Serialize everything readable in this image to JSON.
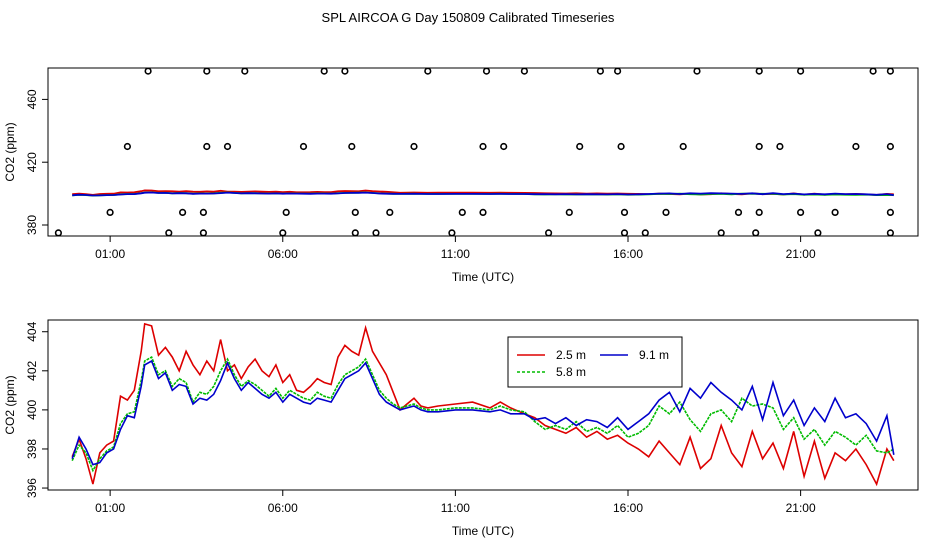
{
  "title": "SPL AIRCOA G  Day 150809  Calibrated Timeseries",
  "chart_data": [
    {
      "type": "line+scatter",
      "xlabel": "Time (UTC)",
      "ylabel": "CO2 (ppm)",
      "xlim_hours": [
        -0.8,
        24.4
      ],
      "ylim": [
        373,
        480
      ],
      "xticks": [
        {
          "h": 1,
          "label": "01:00"
        },
        {
          "h": 6,
          "label": "06:00"
        },
        {
          "h": 11,
          "label": "11:00"
        },
        {
          "h": 16,
          "label": "16:00"
        },
        {
          "h": 21,
          "label": "21:00"
        }
      ],
      "yticks": [
        380,
        420,
        460
      ],
      "line_colors": [
        "#dd0000",
        "#00bb00",
        "#0000cc"
      ],
      "series_y": [
        400.5,
        399.8,
        399.8
      ],
      "scatter_levels": [
        375,
        388,
        430,
        478
      ],
      "scatter": {
        "375": [
          -0.5,
          2.7,
          3.7,
          6.0,
          8.1,
          8.7,
          10.9,
          13.7,
          15.9,
          16.5,
          18.7,
          19.7,
          21.5,
          23.6
        ],
        "388": [
          1.0,
          3.1,
          3.7,
          6.1,
          8.1,
          9.1,
          11.2,
          11.8,
          14.3,
          15.9,
          17.1,
          19.2,
          19.8,
          21.0,
          22.0,
          23.6
        ],
        "430": [
          1.5,
          3.8,
          4.4,
          6.6,
          8.0,
          9.8,
          11.8,
          12.4,
          14.6,
          15.8,
          17.6,
          19.8,
          20.4,
          22.6,
          23.6
        ],
        "478": [
          2.1,
          3.8,
          4.9,
          7.2,
          7.8,
          10.2,
          11.9,
          13.0,
          15.2,
          15.7,
          18.0,
          19.8,
          21.0,
          23.1,
          23.6
        ]
      }
    },
    {
      "type": "line",
      "xlabel": "Time (UTC)",
      "ylabel": "CO2 (ppm)",
      "xlim_hours": [
        -0.8,
        24.4
      ],
      "ylim": [
        395.9,
        404.6
      ],
      "xticks": [
        {
          "h": 1,
          "label": "01:00"
        },
        {
          "h": 6,
          "label": "06:00"
        },
        {
          "h": 11,
          "label": "11:00"
        },
        {
          "h": 16,
          "label": "16:00"
        },
        {
          "h": 21,
          "label": "21:00"
        }
      ],
      "yticks": [
        396,
        398,
        400,
        402,
        404
      ],
      "legend": {
        "position": "top-center",
        "entries": [
          {
            "label": "2.5 m",
            "color": "#dd0000"
          },
          {
            "label": "9.1 m",
            "color": "#0000cc"
          },
          {
            "label": "5.8 m",
            "color": "#00bb00"
          }
        ]
      },
      "series": [
        {
          "name": "2.5 m",
          "color": "#dd0000",
          "x": [
            -0.1,
            0.1,
            0.3,
            0.5,
            0.7,
            0.9,
            1.1,
            1.3,
            1.5,
            1.7,
            1.9,
            2.0,
            2.2,
            2.4,
            2.6,
            2.8,
            3.0,
            3.2,
            3.4,
            3.6,
            3.8,
            4.0,
            4.2,
            4.4,
            4.6,
            4.8,
            5.0,
            5.2,
            5.4,
            5.6,
            5.8,
            6.0,
            6.2,
            6.4,
            6.6,
            6.8,
            7.0,
            7.2,
            7.4,
            7.6,
            7.8,
            8.0,
            8.2,
            8.4,
            8.6,
            8.8,
            9.0,
            9.2,
            9.4,
            9.6,
            9.8,
            10.0,
            10.2,
            10.5,
            11.0,
            11.5,
            12.0,
            12.3,
            12.6,
            13.0,
            13.3,
            13.6,
            13.9,
            14.2,
            14.5,
            14.8,
            15.1,
            15.4,
            15.7,
            16.0,
            16.3,
            16.6,
            16.9,
            17.2,
            17.5,
            17.8,
            18.1,
            18.4,
            18.7,
            19.0,
            19.3,
            19.6,
            19.9,
            20.2,
            20.5,
            20.8,
            21.1,
            21.4,
            21.7,
            22.0,
            22.3,
            22.6,
            22.9,
            23.2,
            23.5,
            23.7
          ],
          "y": [
            397.6,
            398.5,
            397.5,
            396.2,
            397.8,
            398.2,
            398.4,
            400.7,
            400.5,
            401.0,
            403.0,
            404.4,
            404.3,
            402.8,
            403.2,
            402.7,
            402.0,
            403.0,
            402.3,
            401.8,
            402.5,
            402.0,
            403.6,
            402.0,
            402.3,
            401.6,
            402.2,
            402.6,
            402.0,
            401.7,
            402.3,
            401.4,
            401.8,
            401.0,
            400.9,
            401.2,
            401.6,
            401.4,
            401.3,
            402.7,
            403.3,
            403.0,
            402.8,
            404.2,
            403.0,
            402.4,
            401.8,
            400.9,
            400.0,
            400.3,
            400.6,
            400.2,
            400.1,
            400.2,
            400.3,
            400.4,
            400.1,
            400.4,
            400.1,
            399.8,
            399.6,
            399.2,
            399.0,
            398.8,
            399.1,
            398.6,
            398.9,
            398.5,
            398.7,
            398.3,
            398.0,
            397.6,
            398.4,
            397.8,
            397.2,
            398.6,
            397.0,
            397.5,
            399.2,
            397.8,
            397.1,
            398.9,
            397.5,
            398.3,
            397.0,
            398.9,
            396.6,
            398.4,
            396.5,
            397.8,
            397.4,
            398.0,
            397.2,
            396.2,
            398.0,
            397.4
          ]
        },
        {
          "name": "5.8 m",
          "color": "#00bb00",
          "x": [
            -0.1,
            0.1,
            0.3,
            0.5,
            0.7,
            0.9,
            1.1,
            1.3,
            1.5,
            1.7,
            1.9,
            2.0,
            2.2,
            2.4,
            2.6,
            2.8,
            3.0,
            3.2,
            3.4,
            3.6,
            3.8,
            4.0,
            4.2,
            4.4,
            4.6,
            4.8,
            5.0,
            5.2,
            5.4,
            5.6,
            5.8,
            6.0,
            6.2,
            6.4,
            6.6,
            6.8,
            7.0,
            7.2,
            7.4,
            7.6,
            7.8,
            8.0,
            8.2,
            8.4,
            8.6,
            8.8,
            9.0,
            9.2,
            9.4,
            9.6,
            9.8,
            10.0,
            10.2,
            10.5,
            11.0,
            11.5,
            12.0,
            12.3,
            12.6,
            13.0,
            13.3,
            13.6,
            13.9,
            14.2,
            14.5,
            14.8,
            15.1,
            15.4,
            15.7,
            16.0,
            16.3,
            16.6,
            16.9,
            17.2,
            17.5,
            17.8,
            18.1,
            18.4,
            18.7,
            19.0,
            19.3,
            19.6,
            19.9,
            20.2,
            20.5,
            20.8,
            21.1,
            21.4,
            21.7,
            22.0,
            22.3,
            22.6,
            22.9,
            23.2,
            23.5,
            23.7
          ],
          "y": [
            397.4,
            398.2,
            397.8,
            396.9,
            397.5,
            397.9,
            398.1,
            399.3,
            399.8,
            399.9,
            401.5,
            402.5,
            402.7,
            401.8,
            402.0,
            401.2,
            401.6,
            401.4,
            400.4,
            400.9,
            400.8,
            401.2,
            402.0,
            402.6,
            401.8,
            401.2,
            401.5,
            401.3,
            401.0,
            400.7,
            401.1,
            400.6,
            401.0,
            400.8,
            400.6,
            400.5,
            400.9,
            400.7,
            400.6,
            401.3,
            401.8,
            402.0,
            402.2,
            402.6,
            401.8,
            401.0,
            400.6,
            400.3,
            400.1,
            400.2,
            400.3,
            400.1,
            400.0,
            400.0,
            400.1,
            400.1,
            400.0,
            400.2,
            400.0,
            399.9,
            399.4,
            399.0,
            399.2,
            399.0,
            399.4,
            398.9,
            399.1,
            398.8,
            399.2,
            398.6,
            398.8,
            399.2,
            400.2,
            399.8,
            400.4,
            399.5,
            398.9,
            399.8,
            400.0,
            399.4,
            400.6,
            400.2,
            400.3,
            400.1,
            399.0,
            399.6,
            398.5,
            399.0,
            398.2,
            398.9,
            398.6,
            398.2,
            398.7,
            397.9,
            397.8,
            398.0
          ]
        },
        {
          "name": "9.1 m",
          "color": "#0000cc",
          "x": [
            -0.1,
            0.1,
            0.3,
            0.5,
            0.7,
            0.9,
            1.1,
            1.3,
            1.5,
            1.7,
            1.9,
            2.0,
            2.2,
            2.4,
            2.6,
            2.8,
            3.0,
            3.2,
            3.4,
            3.6,
            3.8,
            4.0,
            4.2,
            4.4,
            4.6,
            4.8,
            5.0,
            5.2,
            5.4,
            5.6,
            5.8,
            6.0,
            6.2,
            6.4,
            6.6,
            6.8,
            7.0,
            7.2,
            7.4,
            7.6,
            7.8,
            8.0,
            8.2,
            8.4,
            8.6,
            8.8,
            9.0,
            9.2,
            9.4,
            9.6,
            9.8,
            10.0,
            10.2,
            10.5,
            11.0,
            11.5,
            12.0,
            12.3,
            12.6,
            13.0,
            13.3,
            13.6,
            13.9,
            14.2,
            14.5,
            14.8,
            15.1,
            15.4,
            15.7,
            16.0,
            16.3,
            16.6,
            16.9,
            17.2,
            17.5,
            17.8,
            18.1,
            18.4,
            18.7,
            19.0,
            19.3,
            19.6,
            19.9,
            20.2,
            20.5,
            20.8,
            21.1,
            21.4,
            21.7,
            22.0,
            22.3,
            22.6,
            22.9,
            23.2,
            23.5,
            23.7
          ],
          "y": [
            397.5,
            398.6,
            398.0,
            397.2,
            397.3,
            397.8,
            398.0,
            399.0,
            399.7,
            399.6,
            401.2,
            402.3,
            402.5,
            401.6,
            401.9,
            401.0,
            401.3,
            401.2,
            400.3,
            400.6,
            400.5,
            400.8,
            401.5,
            402.4,
            401.6,
            401.0,
            401.4,
            401.1,
            400.8,
            400.6,
            400.9,
            400.4,
            400.8,
            400.6,
            400.4,
            400.3,
            400.6,
            400.5,
            400.4,
            401.0,
            401.6,
            401.8,
            402.0,
            402.4,
            401.6,
            400.8,
            400.4,
            400.2,
            400.0,
            400.1,
            400.2,
            400.0,
            399.9,
            399.9,
            400.0,
            400.0,
            399.9,
            400.0,
            399.8,
            399.8,
            399.5,
            399.6,
            399.3,
            399.6,
            399.2,
            399.5,
            399.4,
            399.1,
            399.6,
            399.0,
            399.4,
            399.8,
            400.5,
            400.9,
            399.9,
            401.1,
            400.6,
            401.4,
            400.9,
            400.5,
            400.0,
            401.2,
            399.5,
            401.4,
            399.7,
            400.5,
            399.2,
            400.1,
            399.4,
            400.6,
            399.6,
            399.8,
            399.3,
            398.4,
            399.7,
            397.7
          ]
        }
      ]
    }
  ]
}
